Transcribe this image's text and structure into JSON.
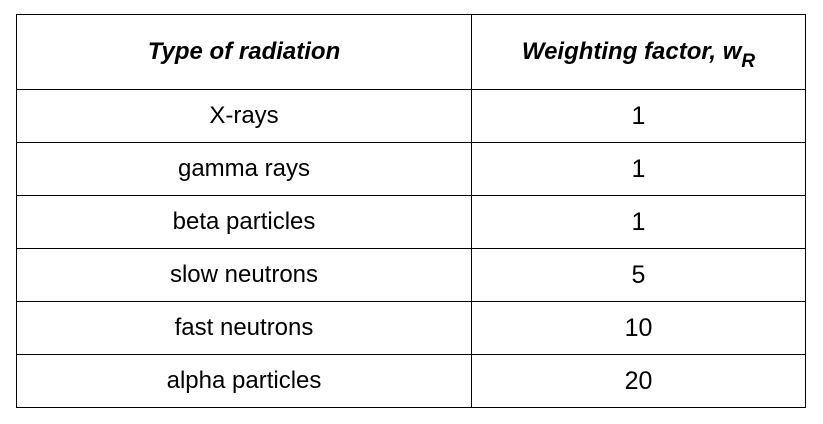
{
  "table": {
    "headers": {
      "type": "Type of radiation",
      "factor": "Weighting factor, w",
      "factor_subscript": "R"
    },
    "rows": [
      {
        "type": "X-rays",
        "factor": "1"
      },
      {
        "type": "gamma rays",
        "factor": "1"
      },
      {
        "type": "beta particles",
        "factor": "1"
      },
      {
        "type": "slow neutrons",
        "factor": "5"
      },
      {
        "type": "fast neutrons",
        "factor": "10"
      },
      {
        "type": "alpha particles",
        "factor": "20"
      }
    ]
  }
}
